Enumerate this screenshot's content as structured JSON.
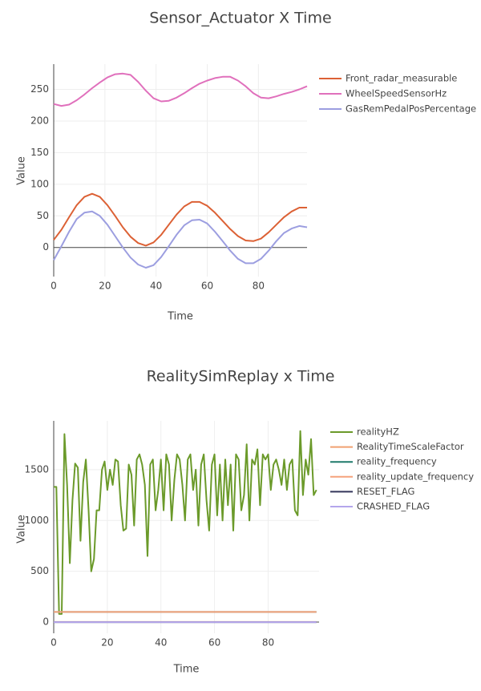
{
  "chart_data": [
    {
      "type": "line",
      "title": "Sensor_Actuator X Time",
      "xlabel": "Time",
      "ylabel": "Value",
      "grid": true,
      "xlim": [
        0,
        99
      ],
      "ylim": [
        -46,
        290
      ],
      "xticks": [
        0,
        20,
        40,
        60,
        80
      ],
      "yticks": [
        0,
        50,
        100,
        150,
        200,
        250
      ],
      "x": [
        0,
        3,
        6,
        9,
        12,
        15,
        18,
        21,
        24,
        27,
        30,
        33,
        36,
        39,
        42,
        45,
        48,
        51,
        54,
        57,
        60,
        63,
        66,
        69,
        72,
        75,
        78,
        81,
        84,
        87,
        90,
        93,
        96,
        99
      ],
      "series": [
        {
          "name": "Front_radar_measurable",
          "color": "#dc6135",
          "values": [
            12,
            28,
            48,
            67,
            80,
            85,
            80,
            67,
            50,
            32,
            17,
            7,
            3,
            8,
            20,
            36,
            52,
            65,
            72,
            72,
            66,
            55,
            42,
            29,
            18,
            11,
            10,
            14,
            24,
            36,
            48,
            57,
            63,
            63
          ]
        },
        {
          "name": "WheelSpeedSensorHz",
          "color": "#e070bc",
          "values": [
            227,
            224,
            226,
            233,
            242,
            252,
            261,
            269,
            274,
            275,
            273,
            262,
            248,
            236,
            231,
            232,
            237,
            244,
            252,
            259,
            264,
            268,
            270,
            270,
            264,
            255,
            244,
            237,
            236,
            239,
            243,
            246,
            250,
            255
          ]
        },
        {
          "name": "GasRemPedalPosPercentage",
          "color": "#9c9ee0",
          "values": [
            -20,
            2,
            25,
            45,
            55,
            57,
            50,
            36,
            18,
            0,
            -16,
            -27,
            -32,
            -28,
            -15,
            2,
            20,
            35,
            43,
            44,
            38,
            25,
            10,
            -5,
            -18,
            -25,
            -25,
            -18,
            -5,
            10,
            23,
            30,
            34,
            32
          ]
        }
      ]
    },
    {
      "type": "line",
      "title": "RealitySimReplay x Time",
      "xlabel": "Time",
      "ylabel": "Value",
      "grid": true,
      "xlim": [
        0,
        99
      ],
      "ylim": [
        -110,
        1980
      ],
      "xticks": [
        0,
        20,
        40,
        60,
        80
      ],
      "yticks": [
        0,
        500,
        1000,
        1500
      ],
      "x": [
        0,
        1,
        2,
        3,
        4,
        5,
        6,
        7,
        8,
        9,
        10,
        11,
        12,
        13,
        14,
        15,
        16,
        17,
        18,
        19,
        20,
        21,
        22,
        23,
        24,
        25,
        26,
        27,
        28,
        29,
        30,
        31,
        32,
        33,
        34,
        35,
        36,
        37,
        38,
        39,
        40,
        41,
        42,
        43,
        44,
        45,
        46,
        47,
        48,
        49,
        50,
        51,
        52,
        53,
        54,
        55,
        56,
        57,
        58,
        59,
        60,
        61,
        62,
        63,
        64,
        65,
        66,
        67,
        68,
        69,
        70,
        71,
        72,
        73,
        74,
        75,
        76,
        77,
        78,
        79,
        80,
        81,
        82,
        83,
        84,
        85,
        86,
        87,
        88,
        89,
        90,
        91,
        92,
        93,
        94,
        95,
        96,
        97,
        98
      ],
      "series": [
        {
          "name": "realityHZ",
          "color": "#6b9a2a",
          "values": [
            1330,
            1330,
            80,
            80,
            1850,
            1350,
            580,
            1200,
            1560,
            1520,
            800,
            1380,
            1600,
            1100,
            500,
            620,
            1100,
            1100,
            1500,
            1580,
            1300,
            1500,
            1350,
            1600,
            1580,
            1150,
            900,
            920,
            1550,
            1450,
            950,
            1600,
            1650,
            1550,
            1350,
            650,
            1550,
            1600,
            1100,
            1300,
            1600,
            1100,
            1650,
            1550,
            1000,
            1400,
            1650,
            1600,
            1350,
            1000,
            1600,
            1650,
            1300,
            1500,
            950,
            1550,
            1650,
            1200,
            900,
            1550,
            1650,
            1050,
            1550,
            1000,
            1600,
            1150,
            1550,
            900,
            1650,
            1600,
            1100,
            1250,
            1750,
            1000,
            1600,
            1550,
            1700,
            1150,
            1650,
            1600,
            1650,
            1300,
            1550,
            1600,
            1500,
            1350,
            1600,
            1300,
            1550,
            1600,
            1100,
            1050,
            1880,
            1250,
            1600,
            1450,
            1800,
            1250,
            1300
          ]
        },
        {
          "name": "RealityTimeScaleFactor",
          "color": "#f0a070",
          "values": [
            1,
            1,
            1,
            1,
            1,
            1,
            1,
            1,
            1,
            1,
            1,
            1,
            1,
            1,
            1,
            1,
            1,
            1,
            1,
            1,
            1,
            1,
            1,
            1,
            1,
            1,
            1,
            1,
            1,
            1,
            1,
            1,
            1,
            1,
            1,
            1,
            1,
            1,
            1,
            1,
            1,
            1,
            1,
            1,
            1,
            1,
            1,
            1,
            1,
            1,
            1,
            1,
            1,
            1,
            1,
            1,
            1,
            1,
            1,
            1,
            1,
            1,
            1,
            1,
            1,
            1,
            1,
            1,
            1,
            1,
            1,
            1,
            1,
            1,
            1,
            1,
            1,
            1,
            1,
            1,
            1,
            1,
            1,
            1,
            1,
            1,
            1,
            1,
            1,
            1,
            1,
            1,
            1,
            1,
            1,
            1,
            1,
            1,
            1
          ]
        },
        {
          "name": "reality_frequency",
          "color": "#1f7a6a",
          "values": [
            100,
            100,
            100,
            100,
            100,
            100,
            100,
            100,
            100,
            100,
            100,
            100,
            100,
            100,
            100,
            100,
            100,
            100,
            100,
            100,
            100,
            100,
            100,
            100,
            100,
            100,
            100,
            100,
            100,
            100,
            100,
            100,
            100,
            100,
            100,
            100,
            100,
            100,
            100,
            100,
            100,
            100,
            100,
            100,
            100,
            100,
            100,
            100,
            100,
            100,
            100,
            100,
            100,
            100,
            100,
            100,
            100,
            100,
            100,
            100,
            100,
            100,
            100,
            100,
            100,
            100,
            100,
            100,
            100,
            100,
            100,
            100,
            100,
            100,
            100,
            100,
            100,
            100,
            100,
            100,
            100,
            100,
            100,
            100,
            100,
            100,
            100,
            100,
            100,
            100,
            100,
            100,
            100,
            100,
            100,
            100,
            100,
            100,
            100
          ]
        },
        {
          "name": "reality_update_frequency",
          "color": "#f5a27c",
          "values": [
            100,
            100,
            100,
            100,
            100,
            100,
            100,
            100,
            100,
            100,
            100,
            100,
            100,
            100,
            100,
            100,
            100,
            100,
            100,
            100,
            100,
            100,
            100,
            100,
            100,
            100,
            100,
            100,
            100,
            100,
            100,
            100,
            100,
            100,
            100,
            100,
            100,
            100,
            100,
            100,
            100,
            100,
            100,
            100,
            100,
            100,
            100,
            100,
            100,
            100,
            100,
            100,
            100,
            100,
            100,
            100,
            100,
            100,
            100,
            100,
            100,
            100,
            100,
            100,
            100,
            100,
            100,
            100,
            100,
            100,
            100,
            100,
            100,
            100,
            100,
            100,
            100,
            100,
            100,
            100,
            100,
            100,
            100,
            100,
            100,
            100,
            100,
            100,
            100,
            100,
            100,
            100,
            100,
            100,
            100,
            100,
            100,
            100,
            100
          ]
        },
        {
          "name": "RESET_FLAG",
          "color": "#33355a",
          "values": [
            0,
            0,
            0,
            0,
            0,
            0,
            0,
            0,
            0,
            0,
            0,
            0,
            0,
            0,
            0,
            0,
            0,
            0,
            0,
            0,
            0,
            0,
            0,
            0,
            0,
            0,
            0,
            0,
            0,
            0,
            0,
            0,
            0,
            0,
            0,
            0,
            0,
            0,
            0,
            0,
            0,
            0,
            0,
            0,
            0,
            0,
            0,
            0,
            0,
            0,
            0,
            0,
            0,
            0,
            0,
            0,
            0,
            0,
            0,
            0,
            0,
            0,
            0,
            0,
            0,
            0,
            0,
            0,
            0,
            0,
            0,
            0,
            0,
            0,
            0,
            0,
            0,
            0,
            0,
            0,
            0,
            0,
            0,
            0,
            0,
            0,
            0,
            0,
            0,
            0,
            0,
            0,
            0,
            0,
            0,
            0,
            0,
            0,
            0
          ]
        },
        {
          "name": "CRASHED_FLAG",
          "color": "#b4a6ec",
          "values": [
            0,
            0,
            0,
            0,
            0,
            0,
            0,
            0,
            0,
            0,
            0,
            0,
            0,
            0,
            0,
            0,
            0,
            0,
            0,
            0,
            0,
            0,
            0,
            0,
            0,
            0,
            0,
            0,
            0,
            0,
            0,
            0,
            0,
            0,
            0,
            0,
            0,
            0,
            0,
            0,
            0,
            0,
            0,
            0,
            0,
            0,
            0,
            0,
            0,
            0,
            0,
            0,
            0,
            0,
            0,
            0,
            0,
            0,
            0,
            0,
            0,
            0,
            0,
            0,
            0,
            0,
            0,
            0,
            0,
            0,
            0,
            0,
            0,
            0,
            0,
            0,
            0,
            0,
            0,
            0,
            0,
            0,
            0,
            0,
            0,
            0,
            0,
            0,
            0,
            0,
            0,
            0,
            0,
            0,
            0,
            0,
            0,
            0,
            0
          ]
        }
      ]
    }
  ]
}
